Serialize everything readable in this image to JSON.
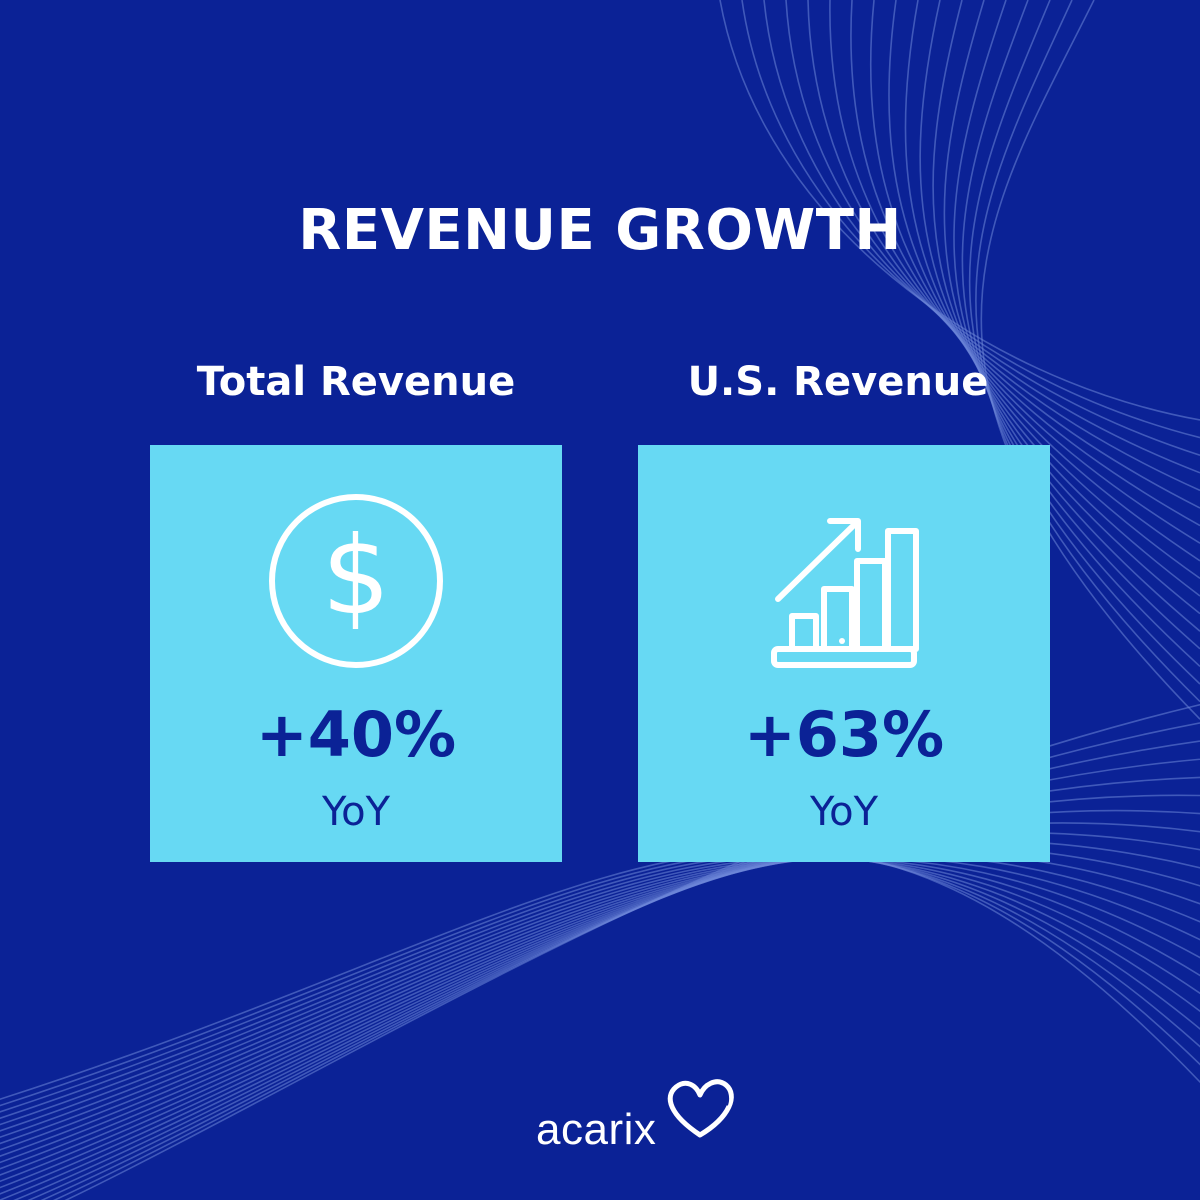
{
  "title": "REVENUE GROWTH",
  "cards": [
    {
      "label": "Total Revenue",
      "value": "+40%",
      "sub": "YoY",
      "icon": "dollar-circle-icon"
    },
    {
      "label": "U.S. Revenue",
      "value": "+63%",
      "sub": "YoY",
      "icon": "growth-bar-chart-icon"
    }
  ],
  "logo": {
    "text": "acarix",
    "icon": "heart-outline-icon"
  },
  "colors": {
    "background": "#0b2296",
    "card": "#67d9f3",
    "value_text": "#0b2296",
    "white": "#ffffff"
  }
}
